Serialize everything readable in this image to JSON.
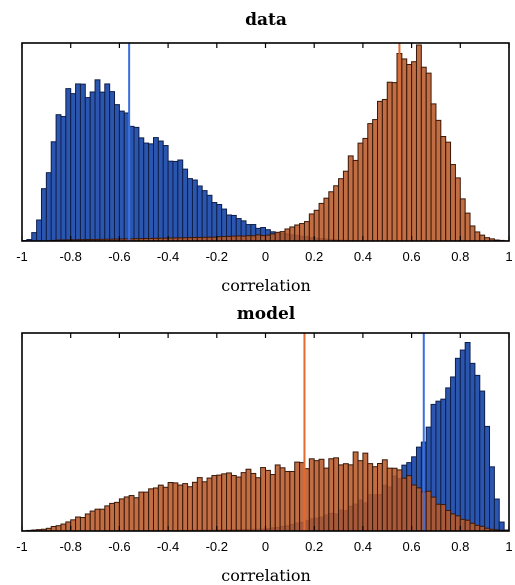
{
  "chart_data": [
    {
      "type": "histogram",
      "title": "data",
      "xlabel": "correlation",
      "ylabel": "",
      "xlim": [
        -1,
        1
      ],
      "xticks": [
        "-1",
        "-0.8",
        "-0.6",
        "-0.4",
        "-0.2",
        "0",
        "0.2",
        "0.4",
        "0.6",
        "0.8",
        "1"
      ],
      "ymax": 1.0,
      "grid": false,
      "series": [
        {
          "color": "#2b56b0",
          "edge": "#0e1e4a",
          "mean_line": -0.56,
          "mean_color": "#3a6fe0",
          "profile": [
            [
              -1.0,
              0.0
            ],
            [
              -0.96,
              0.01
            ],
            [
              -0.93,
              0.1
            ],
            [
              -0.9,
              0.32
            ],
            [
              -0.86,
              0.55
            ],
            [
              -0.82,
              0.7
            ],
            [
              -0.78,
              0.75
            ],
            [
              -0.72,
              0.77
            ],
            [
              -0.66,
              0.75
            ],
            [
              -0.6,
              0.7
            ],
            [
              -0.56,
              0.64
            ],
            [
              -0.52,
              0.58
            ],
            [
              -0.48,
              0.53
            ],
            [
              -0.42,
              0.48
            ],
            [
              -0.36,
              0.4
            ],
            [
              -0.3,
              0.32
            ],
            [
              -0.24,
              0.24
            ],
            [
              -0.18,
              0.17
            ],
            [
              -0.12,
              0.11
            ],
            [
              -0.06,
              0.08
            ],
            [
              0.0,
              0.06
            ],
            [
              0.06,
              0.04
            ],
            [
              0.12,
              0.03
            ],
            [
              0.2,
              0.015
            ],
            [
              0.3,
              0.005
            ],
            [
              0.4,
              0.0
            ],
            [
              1.0,
              0.0
            ]
          ]
        },
        {
          "color": "#b85a2b",
          "edge": "#3a1808",
          "mean_line": 0.55,
          "mean_color": "#e06a30",
          "profile": [
            [
              -1.0,
              0.0
            ],
            [
              -0.9,
              0.0
            ],
            [
              -0.85,
              0.005
            ],
            [
              -0.6,
              0.01
            ],
            [
              -0.2,
              0.02
            ],
            [
              0.0,
              0.03
            ],
            [
              0.1,
              0.06
            ],
            [
              0.16,
              0.1
            ],
            [
              0.22,
              0.16
            ],
            [
              0.28,
              0.25
            ],
            [
              0.34,
              0.38
            ],
            [
              0.4,
              0.52
            ],
            [
              0.46,
              0.68
            ],
            [
              0.52,
              0.82
            ],
            [
              0.58,
              0.94
            ],
            [
              0.62,
              0.97
            ],
            [
              0.66,
              0.88
            ],
            [
              0.7,
              0.72
            ],
            [
              0.74,
              0.54
            ],
            [
              0.78,
              0.34
            ],
            [
              0.82,
              0.16
            ],
            [
              0.86,
              0.06
            ],
            [
              0.9,
              0.02
            ],
            [
              0.95,
              0.005
            ],
            [
              1.0,
              0.0
            ]
          ]
        }
      ]
    },
    {
      "type": "histogram",
      "title": "model",
      "xlabel": "correlation",
      "ylabel": "",
      "xlim": [
        -1,
        1
      ],
      "xticks": [
        "-1",
        "-0.8",
        "-0.6",
        "-0.4",
        "-0.2",
        "0",
        "0.2",
        "0.4",
        "0.6",
        "0.8",
        "1"
      ],
      "ymax": 1.0,
      "grid": false,
      "series": [
        {
          "color": "#2b56b0",
          "edge": "#0e1e4a",
          "mean_line": 0.65,
          "mean_color": "#3a6fe0",
          "profile": [
            [
              -1.0,
              0.0
            ],
            [
              -0.6,
              0.0
            ],
            [
              -0.2,
              0.005
            ],
            [
              0.0,
              0.01
            ],
            [
              0.1,
              0.03
            ],
            [
              0.2,
              0.06
            ],
            [
              0.3,
              0.1
            ],
            [
              0.4,
              0.15
            ],
            [
              0.5,
              0.22
            ],
            [
              0.56,
              0.3
            ],
            [
              0.6,
              0.38
            ],
            [
              0.66,
              0.52
            ],
            [
              0.72,
              0.66
            ],
            [
              0.78,
              0.8
            ],
            [
              0.82,
              0.87
            ],
            [
              0.85,
              0.9
            ],
            [
              0.88,
              0.82
            ],
            [
              0.9,
              0.6
            ],
            [
              0.93,
              0.3
            ],
            [
              0.96,
              0.08
            ],
            [
              0.98,
              0.01
            ],
            [
              1.0,
              0.0
            ]
          ]
        },
        {
          "color": "#b85a2b",
          "edge": "#3a1808",
          "mean_line": 0.16,
          "mean_color": "#e06a30",
          "profile": [
            [
              -1.0,
              0.0
            ],
            [
              -0.9,
              0.01
            ],
            [
              -0.82,
              0.04
            ],
            [
              -0.74,
              0.08
            ],
            [
              -0.66,
              0.12
            ],
            [
              -0.56,
              0.17
            ],
            [
              -0.46,
              0.21
            ],
            [
              -0.36,
              0.24
            ],
            [
              -0.26,
              0.26
            ],
            [
              -0.14,
              0.28
            ],
            [
              0.0,
              0.3
            ],
            [
              0.1,
              0.32
            ],
            [
              0.2,
              0.34
            ],
            [
              0.3,
              0.36
            ],
            [
              0.4,
              0.37
            ],
            [
              0.46,
              0.36
            ],
            [
              0.5,
              0.34
            ],
            [
              0.56,
              0.3
            ],
            [
              0.62,
              0.25
            ],
            [
              0.68,
              0.18
            ],
            [
              0.74,
              0.12
            ],
            [
              0.8,
              0.07
            ],
            [
              0.86,
              0.035
            ],
            [
              0.92,
              0.01
            ],
            [
              1.0,
              0.0
            ]
          ]
        }
      ]
    }
  ]
}
